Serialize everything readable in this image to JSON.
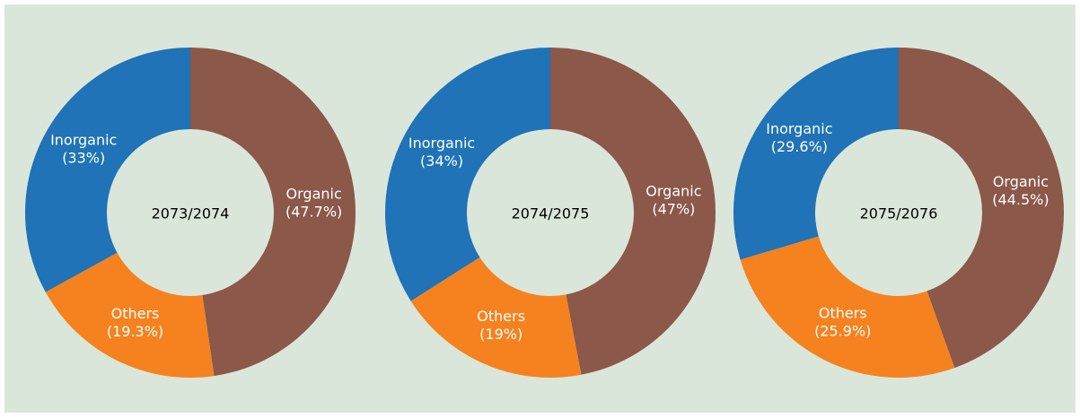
{
  "chart_data": [
    {
      "type": "donut",
      "title": "2073/2074",
      "categories": [
        "Organic",
        "Others",
        "Inorganic"
      ],
      "values": [
        47.7,
        19.3,
        33
      ],
      "value_labels": [
        "(47.7%)",
        "(19.3%)",
        "(33%)"
      ],
      "colors": [
        "#8b5849",
        "#f5821f",
        "#1f73b6"
      ]
    },
    {
      "type": "donut",
      "title": "2074/2075",
      "categories": [
        "Organic",
        "Others",
        "Inorganic"
      ],
      "values": [
        47,
        19,
        34
      ],
      "value_labels": [
        "(47%)",
        "(19%)",
        "(34%)"
      ],
      "colors": [
        "#8b5849",
        "#f5821f",
        "#1f73b6"
      ]
    },
    {
      "type": "donut",
      "title": "2075/2076",
      "categories": [
        "Organic",
        "Others",
        "Inorganic"
      ],
      "values": [
        44.5,
        25.9,
        29.6
      ],
      "value_labels": [
        "(44.5%)",
        "(25.9%)",
        "(29.6%)"
      ],
      "colors": [
        "#8b5849",
        "#f5821f",
        "#1f73b6"
      ]
    }
  ]
}
